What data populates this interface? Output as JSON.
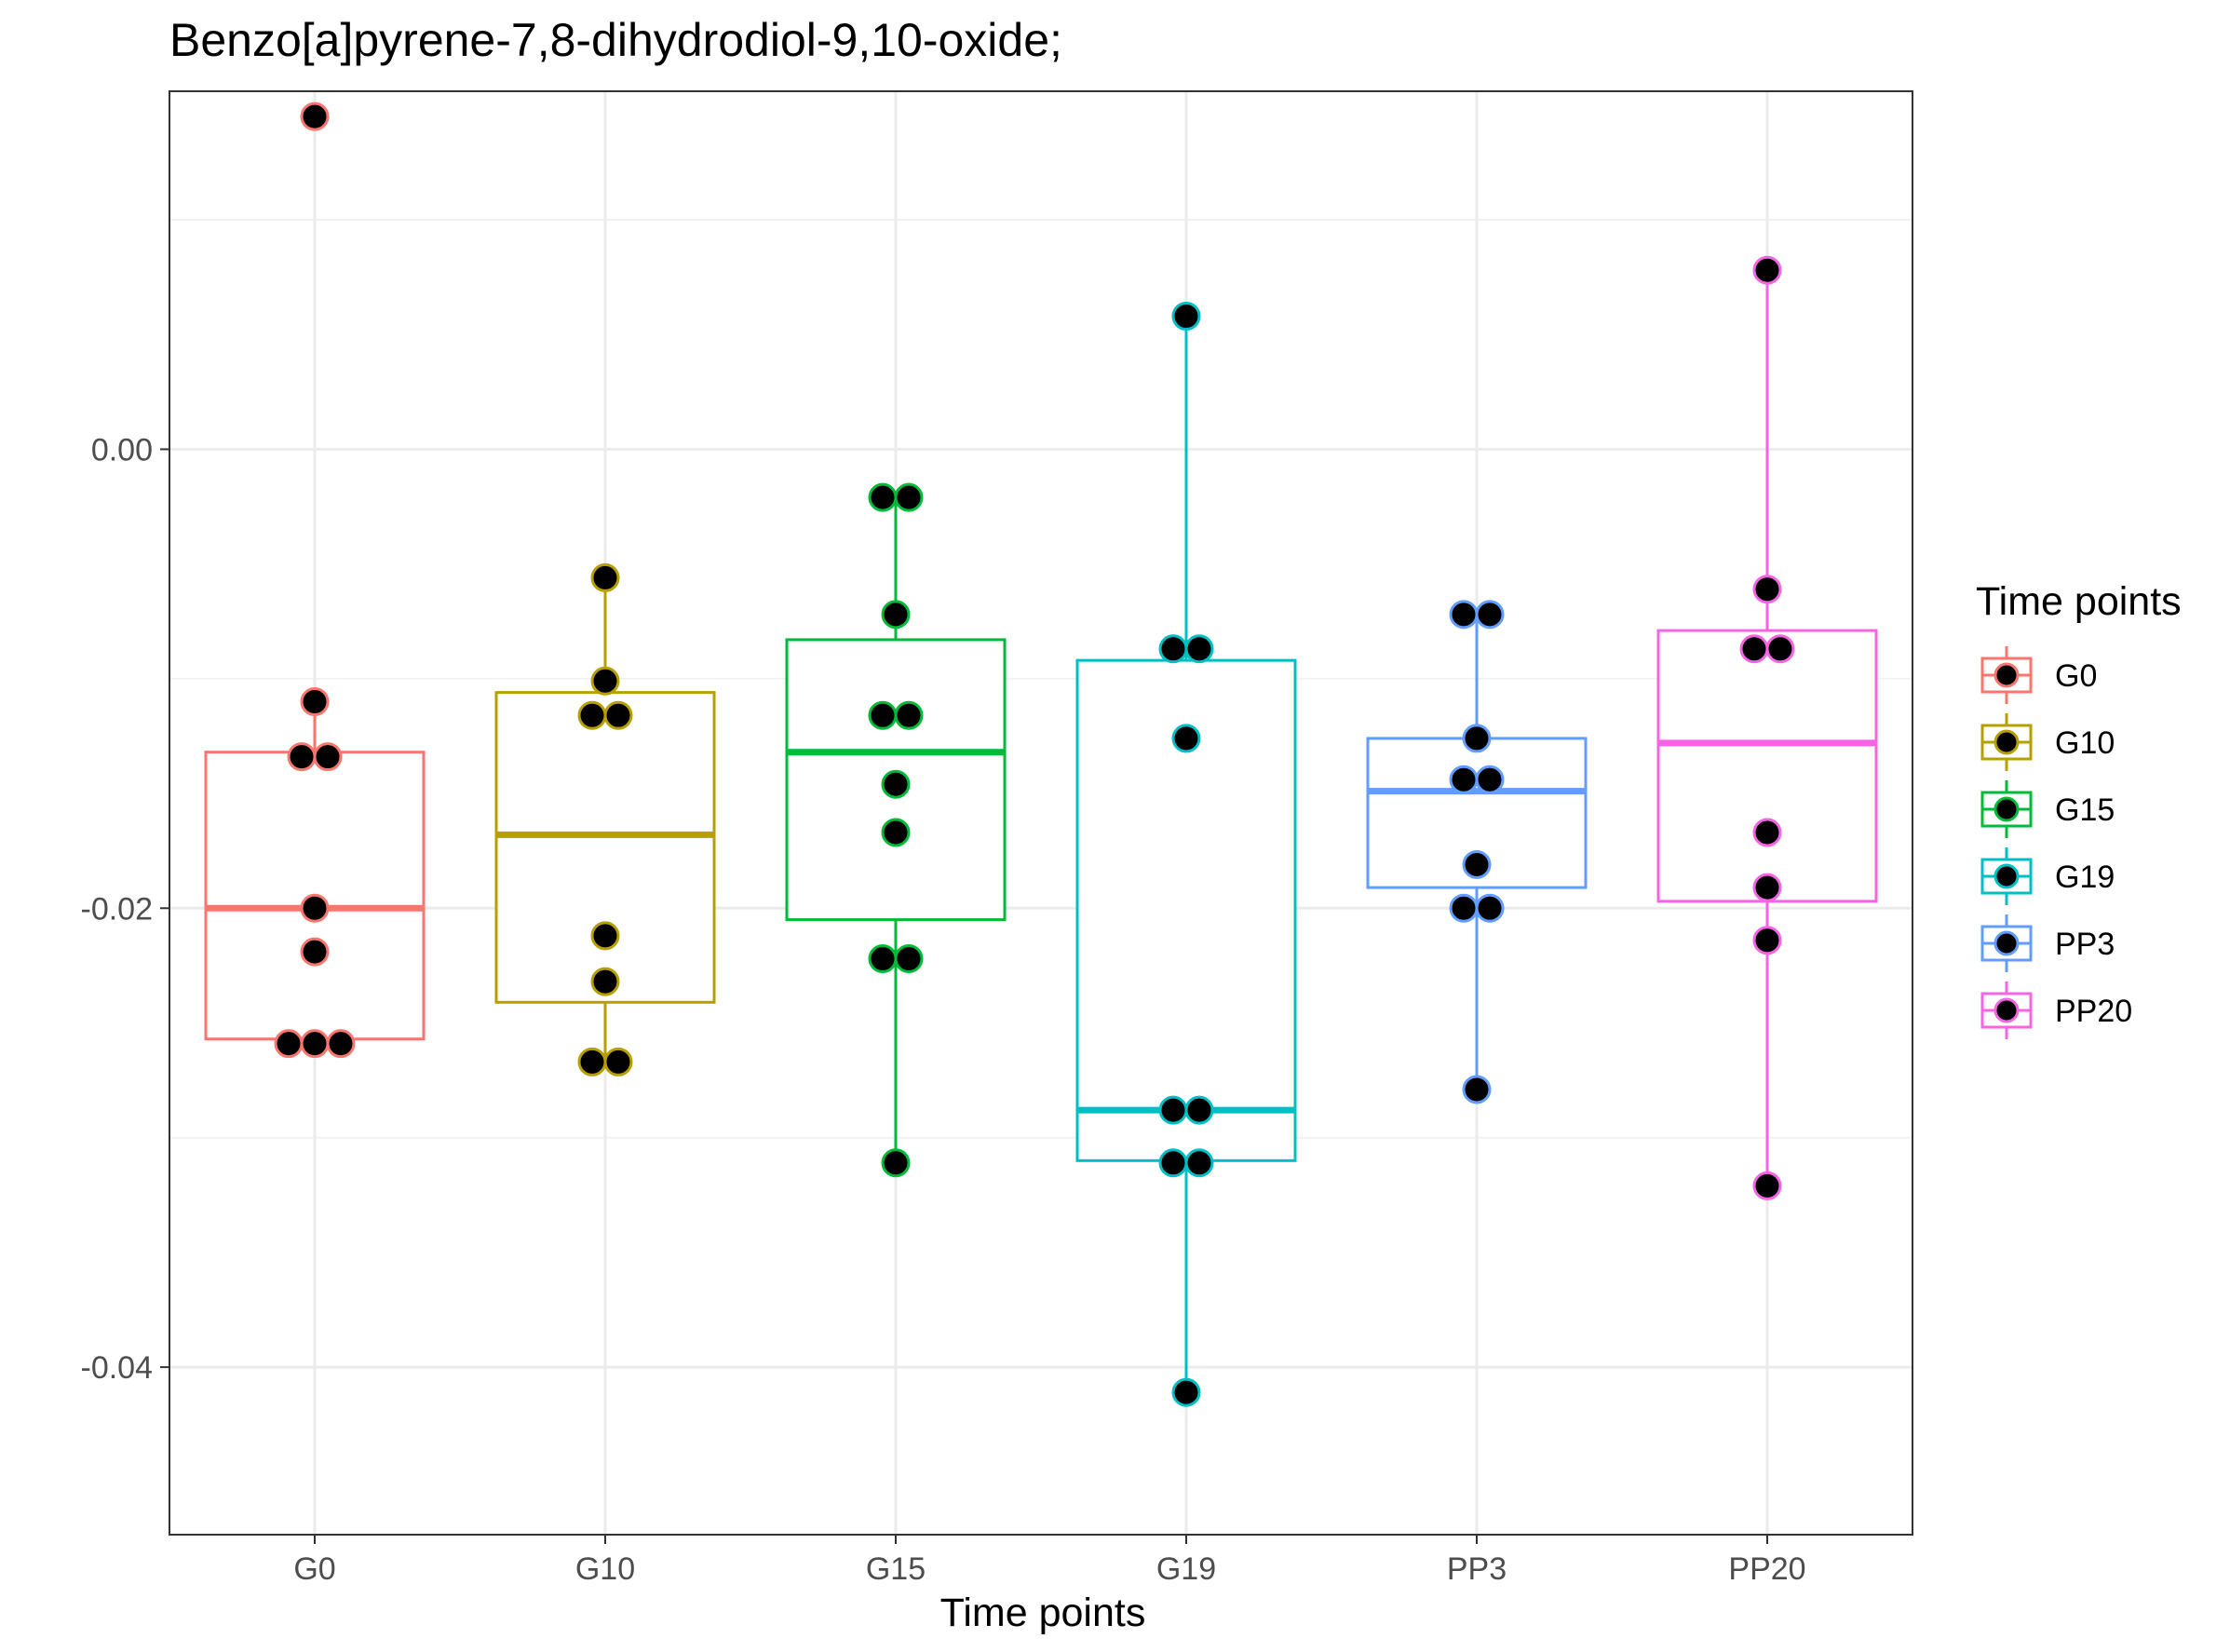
{
  "chart_data": {
    "type": "box",
    "title": "Benzo[a]pyrene-7,8-dihydrodiol-9,10-oxide;",
    "xlabel": "Time points",
    "ylabel": "",
    "ylim": [
      -0.0473,
      0.0156
    ],
    "y_ticks": [
      0.0,
      -0.02,
      -0.04
    ],
    "y_tick_labels": [
      "0.00",
      "-0.02",
      "-0.04"
    ],
    "grid": true,
    "legend": {
      "title": "Time points",
      "position": "right"
    },
    "categories": [
      "G0",
      "G10",
      "G15",
      "G19",
      "PP3",
      "PP20"
    ],
    "series": [
      {
        "name": "G0",
        "color": "#F8766D",
        "box": {
          "lower_whisker": -0.0259,
          "q1": -0.0257,
          "median": -0.02,
          "q3": -0.0132,
          "upper_whisker": -0.011
        },
        "points": [
          0.0145,
          -0.011,
          -0.0134,
          -0.0134,
          -0.02,
          -0.0219,
          -0.0259,
          -0.0259,
          -0.0259
        ]
      },
      {
        "name": "G10",
        "color": "#B79F00",
        "box": {
          "lower_whisker": -0.0267,
          "q1": -0.0241,
          "median": -0.0168,
          "q3": -0.0106,
          "upper_whisker": -0.0056
        },
        "points": [
          -0.0056,
          -0.0101,
          -0.0116,
          -0.0116,
          -0.0212,
          -0.0232,
          -0.0267,
          -0.0267
        ]
      },
      {
        "name": "G15",
        "color": "#00BA38",
        "box": {
          "lower_whisker": -0.0311,
          "q1": -0.0205,
          "median": -0.0132,
          "q3": -0.0083,
          "upper_whisker": -0.0021
        },
        "points": [
          -0.0021,
          -0.0021,
          -0.0072,
          -0.0116,
          -0.0116,
          -0.0146,
          -0.0167,
          -0.0222,
          -0.0222,
          -0.0311
        ]
      },
      {
        "name": "G19",
        "color": "#00BFC4",
        "box": {
          "lower_whisker": -0.0411,
          "q1": -0.031,
          "median": -0.0288,
          "q3": -0.0092,
          "upper_whisker": 0.0058
        },
        "points": [
          0.0058,
          -0.0087,
          -0.0087,
          -0.0126,
          -0.0288,
          -0.0288,
          -0.0311,
          -0.0311,
          -0.0411
        ]
      },
      {
        "name": "PP3",
        "color": "#619CFF",
        "box": {
          "lower_whisker": -0.0279,
          "q1": -0.0191,
          "median": -0.0149,
          "q3": -0.0126,
          "upper_whisker": -0.0072
        },
        "points": [
          -0.0072,
          -0.0072,
          -0.0126,
          -0.0144,
          -0.0144,
          -0.0181,
          -0.02,
          -0.02,
          -0.0279
        ]
      },
      {
        "name": "PP20",
        "color": "#F564E3",
        "box": {
          "lower_whisker": -0.0321,
          "q1": -0.0197,
          "median": -0.0128,
          "q3": -0.0079,
          "upper_whisker": 0.0078
        },
        "points": [
          0.0078,
          -0.0061,
          -0.0087,
          -0.0087,
          -0.0167,
          -0.0191,
          -0.0214,
          -0.0321
        ]
      }
    ]
  }
}
